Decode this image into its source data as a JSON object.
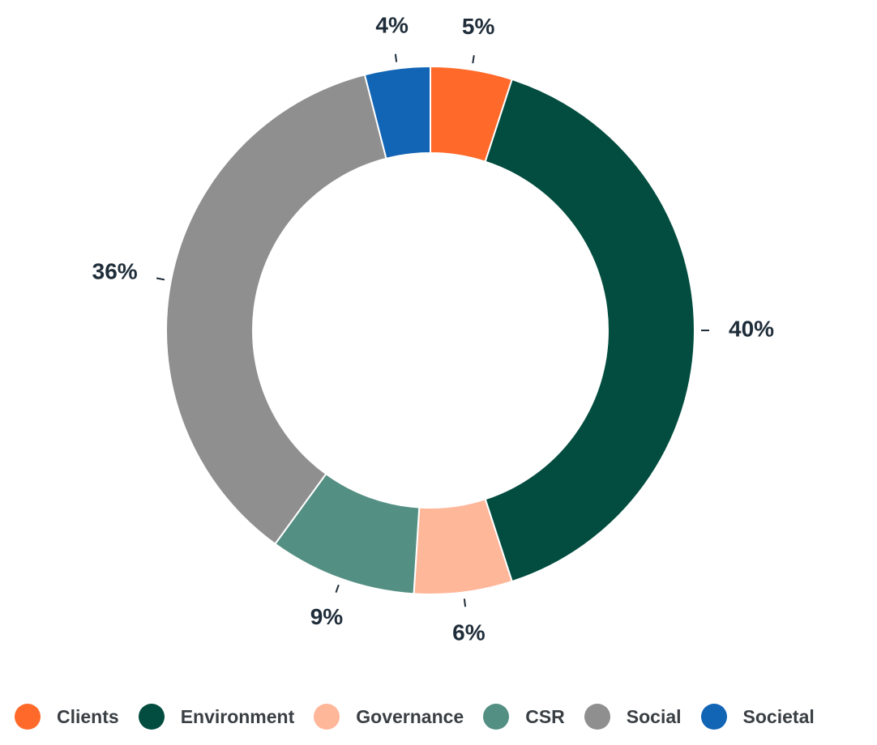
{
  "chart_data": {
    "type": "pie",
    "variant": "donut",
    "categories": [
      "Clients",
      "Environment",
      "Governance",
      "CSR",
      "Social",
      "Societal"
    ],
    "values": [
      5,
      40,
      6,
      9,
      36,
      4
    ],
    "data_labels": [
      "5%",
      "40%",
      "6%",
      "9%",
      "36%",
      "4%"
    ],
    "colors": [
      "#ff6a2a",
      "#024d3f",
      "#ffb79a",
      "#548f83",
      "#8f8f8f",
      "#1264b5"
    ],
    "title": "",
    "legend_position": "bottom",
    "start_angle_deg": 0,
    "direction": "clockwise"
  },
  "legend": {
    "items": [
      {
        "label": "Clients",
        "color": "#ff6a2a"
      },
      {
        "label": "Environment",
        "color": "#024d3f"
      },
      {
        "label": "Governance",
        "color": "#ffb79a"
      },
      {
        "label": "CSR",
        "color": "#548f83"
      },
      {
        "label": "Social",
        "color": "#8f8f8f"
      },
      {
        "label": "Societal",
        "color": "#1264b5"
      }
    ]
  },
  "colors": {
    "label_text": "#1f2d3a",
    "legend_text": "#3a3f44",
    "leader_line": "#1f2d3a",
    "slice_border": "#ffffff"
  }
}
